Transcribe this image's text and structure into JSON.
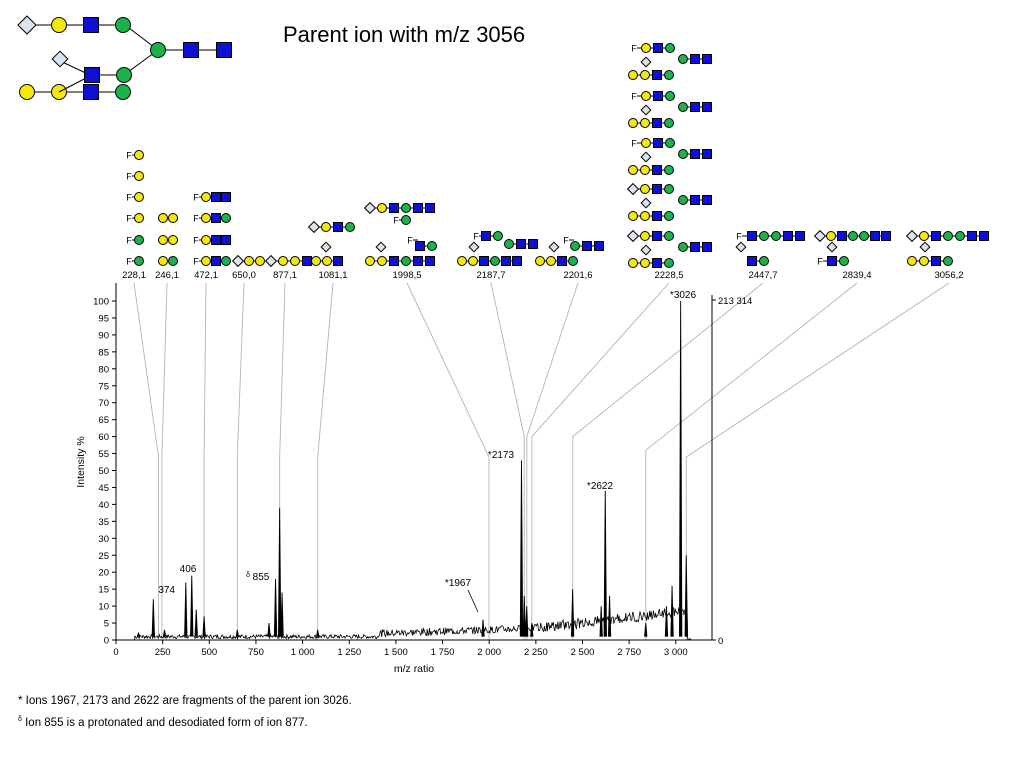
{
  "title": "Parent ion with m/z 3056",
  "colors": {
    "galactose": "#f4e70a",
    "mannose": "#1bb24b",
    "glcnac": "#1010d0",
    "sialic": "#d8e4ee",
    "line": "#000000",
    "connector": "#b4b4b4"
  },
  "footnotes": {
    "ast_mark": "*",
    "ast_text": " Ions 1967, 2173 and 2622 are fragments of the parent ion 3026.",
    "delta_mark": "δ",
    "delta_text": " Ion 855 is a protonated and desodiated form of ion 877."
  },
  "parent_structure": "sialic-gal-glcnac-man branch, sialic-glcnac-man branch with gal-gal, core man-glcnac-glcnac",
  "fragments": [
    {
      "label": "228,1",
      "mz": 228.1,
      "peak_percent": 54
    },
    {
      "label": "246,1",
      "mz": 246.1,
      "peak_percent": 54
    },
    {
      "label": "472,1",
      "mz": 472.1,
      "peak_percent": 54
    },
    {
      "label": "650,0",
      "mz": 650.0,
      "peak_percent": 54
    },
    {
      "label": "877,1",
      "mz": 877.1,
      "peak_percent": 54
    },
    {
      "label": "1081,1",
      "mz": 1081.1,
      "peak_percent": 54
    },
    {
      "label": "1998,5",
      "mz": 1998.5,
      "peak_percent": 54
    },
    {
      "label": "2187,7",
      "mz": 2187.7,
      "peak_percent": 60
    },
    {
      "label": "2201,6",
      "mz": 2201.6,
      "peak_percent": 60
    },
    {
      "label": "2228,5",
      "mz": 2228.5,
      "peak_percent": 60
    },
    {
      "label": "2447,7",
      "mz": 2447.7,
      "peak_percent": 60
    },
    {
      "label": "2839,4",
      "mz": 2839.4,
      "peak_percent": 56
    },
    {
      "label": "3056,2",
      "mz": 3056.2,
      "peak_percent": 54
    }
  ],
  "chart_data": {
    "type": "line",
    "title": "",
    "xlabel": "m/z ratio",
    "ylabel": "Intensity %",
    "xlim": [
      0,
      3250
    ],
    "ylim": [
      0,
      105
    ],
    "x_ticks": [
      0,
      250,
      500,
      750,
      1000,
      1250,
      1500,
      1750,
      2000,
      2250,
      2500,
      2750,
      3000
    ],
    "x_tick_labels": [
      "0",
      "250",
      "500",
      "750",
      "1 000",
      "1 250",
      "1 500",
      "1 750",
      "2 000",
      "2 250",
      "2 500",
      "2 750",
      "3 000"
    ],
    "y_ticks": [
      0,
      5,
      10,
      15,
      20,
      25,
      30,
      35,
      40,
      45,
      50,
      55,
      60,
      65,
      70,
      75,
      80,
      85,
      90,
      95,
      100
    ],
    "right_axis_labels": [
      "213 314",
      "0"
    ],
    "grid": false,
    "peaks": [
      [
        120,
        2
      ],
      [
        200,
        12
      ],
      [
        260,
        3
      ],
      [
        374,
        17
      ],
      [
        406,
        19
      ],
      [
        430,
        9
      ],
      [
        472,
        7
      ],
      [
        650,
        3
      ],
      [
        820,
        5
      ],
      [
        855,
        18
      ],
      [
        877,
        39
      ],
      [
        890,
        14
      ],
      [
        1081,
        3
      ],
      [
        1967,
        6
      ],
      [
        2173,
        53
      ],
      [
        2188,
        13
      ],
      [
        2201,
        10
      ],
      [
        2228,
        5
      ],
      [
        2447,
        15
      ],
      [
        2600,
        10
      ],
      [
        2622,
        44
      ],
      [
        2645,
        13
      ],
      [
        2839,
        5
      ],
      [
        2950,
        10
      ],
      [
        2980,
        16
      ],
      [
        3026,
        100
      ],
      [
        3056,
        25
      ]
    ],
    "annotations": [
      {
        "x": 374,
        "y": 14,
        "text": "374"
      },
      {
        "x": 406,
        "y": 20,
        "text": "406"
      },
      {
        "x": 855,
        "y": 18,
        "text": "855",
        "prefix": "δ"
      },
      {
        "x": 1967,
        "y": 16,
        "text": "*1967"
      },
      {
        "x": 2173,
        "y": 55,
        "text": "*2173"
      },
      {
        "x": 2622,
        "y": 45,
        "text": "*2622"
      },
      {
        "x": 3026,
        "y": 102,
        "text": "*3026"
      }
    ]
  }
}
